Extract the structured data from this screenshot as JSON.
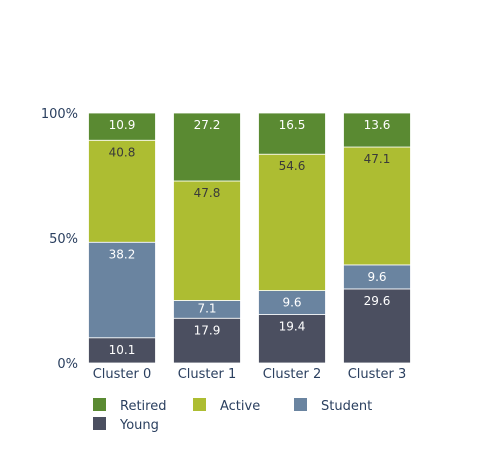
{
  "chart_data": {
    "type": "bar",
    "stacked": true,
    "normalized": true,
    "categories": [
      "Cluster 0",
      "Cluster 1",
      "Cluster 2",
      "Cluster 3"
    ],
    "y_ticks": [
      "0%",
      "50%",
      "100%"
    ],
    "ylim": [
      0,
      100
    ],
    "series": [
      {
        "name": "Young",
        "color": "#4b4f60",
        "label_color": "#ffffff",
        "values": [
          10.1,
          17.9,
          19.4,
          29.6
        ]
      },
      {
        "name": "Student",
        "color": "#6a84a0",
        "label_color": "#ffffff",
        "values": [
          38.2,
          7.1,
          9.6,
          9.6
        ]
      },
      {
        "name": "Active",
        "color": "#adbd32",
        "label_color": "#3a3a3a",
        "values": [
          40.8,
          47.8,
          54.6,
          47.1
        ]
      },
      {
        "name": "Retired",
        "color": "#5a8a32",
        "label_color": "#ffffff",
        "values": [
          10.9,
          27.2,
          16.5,
          13.6
        ]
      }
    ],
    "legend": {
      "placement": "bottom-left",
      "order": [
        "Retired",
        "Active",
        "Student",
        "Young"
      ]
    },
    "grid": false
  }
}
